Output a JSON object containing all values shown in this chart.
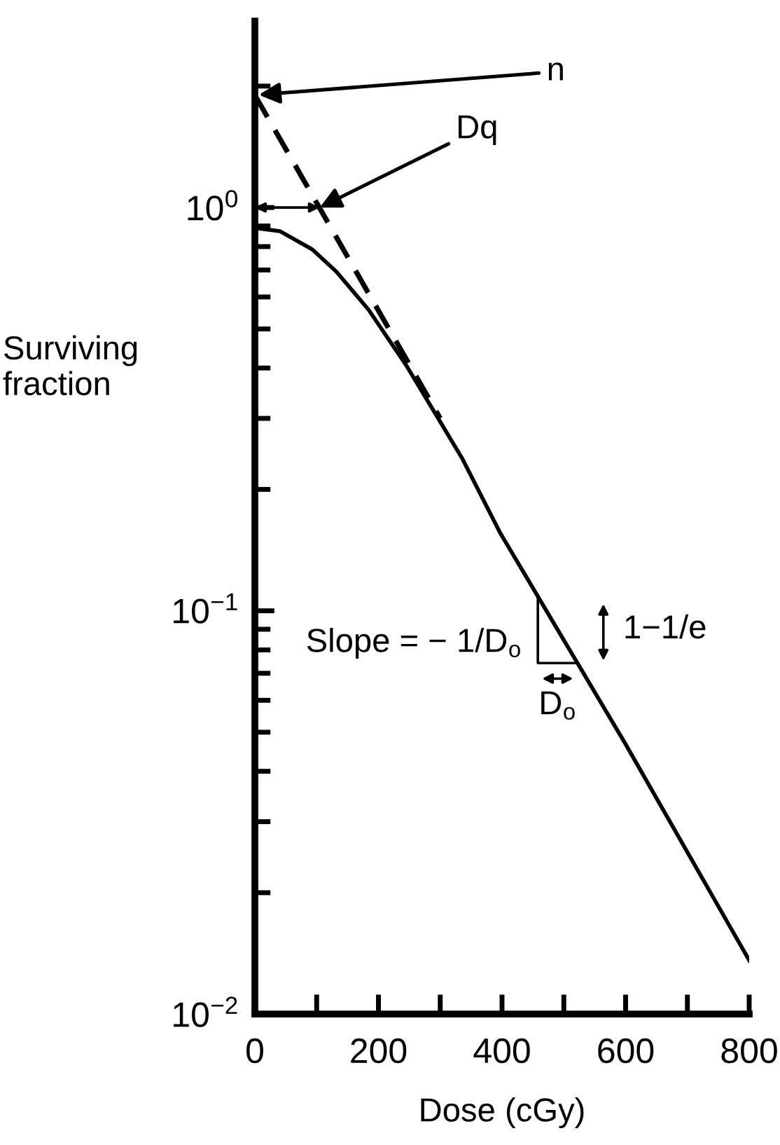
{
  "chart_data": {
    "type": "line",
    "xlabel": "Dose (cGy)",
    "ylabel": "Surviving\nfraction",
    "log": "y",
    "xlim": [
      0,
      800
    ],
    "xticks": [
      0,
      {
        "value": 100,
        "label": null
      },
      200,
      {
        "value": 300,
        "label": null
      },
      400,
      {
        "value": 500,
        "label": null
      },
      600,
      {
        "value": 700,
        "label": null
      },
      800
    ],
    "ylim": [
      0.01,
      2.9
    ],
    "yticks": [
      {
        "value": 0.01,
        "label": "10$^{−2}$"
      },
      {
        "value": 0.1,
        "label": "10$^{−1}$"
      },
      {
        "value": 1,
        "label": "10$^{0}$"
      }
    ],
    "grid": false,
    "legend": false,
    "marker": "none",
    "series": [
      {
        "color": "#000000",
        "line_style": "solid",
        "x": [
          0,
          41,
          93,
          132,
          184,
          245,
          290,
          336,
          397,
          600,
          800
        ],
        "values": [
          0.89,
          0.873,
          0.787,
          0.693,
          0.558,
          0.406,
          0.312,
          0.238,
          0.156,
          0.0467,
          0.0136
        ]
      },
      {
        "color": "#000000",
        "line_style": "dashed",
        "x": [
          0,
          300
        ],
        "values": [
          1.9,
          0.3
        ]
      },
      {
        "color": "#000000",
        "line_style": "solid",
        "x": [
          458,
          458,
          521
        ],
        "values": [
          0.109,
          0.0742,
          0.0742
        ]
      }
    ],
    "annotations": [
      {
        "text": "n",
        "x": 0,
        "y": 1.9
      },
      {
        "text": "Dq",
        "x": 105,
        "y": 1
      },
      {
        "text": "Slope = − 1/D$_{o}$",
        "x": 458,
        "y": 0.083
      },
      {
        "text": "D$_{o}$",
        "x": 490,
        "y": 0.0742
      },
      "1−1/e"
    ]
  }
}
